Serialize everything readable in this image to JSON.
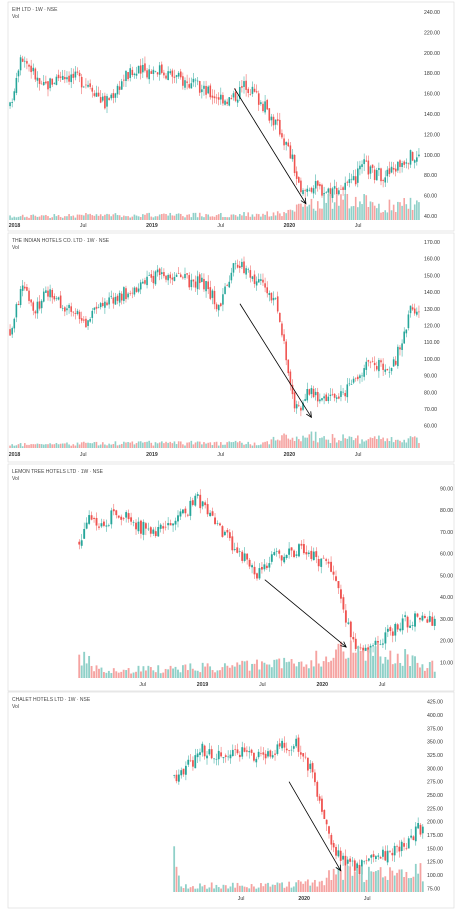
{
  "colors": {
    "up": "#26a69a",
    "down": "#ef5350",
    "up_vol": "#8fd0c8",
    "down_vol": "#f5a3a1",
    "arrow": "#000000"
  },
  "chart_data": [
    {
      "type": "candlestick",
      "title": "EIH LTD · 1W · NSE",
      "volume_label": "Vol",
      "y_ticks": [
        "40.00",
        "60.00",
        "80.00",
        "100.00",
        "120.00",
        "140.00",
        "160.00",
        "180.00",
        "200.00",
        "220.00",
        "240.00"
      ],
      "ylim": [
        40,
        240
      ],
      "x_ticks": [
        {
          "label": "2018",
          "t": 2018.0,
          "bold": true
        },
        {
          "label": "Jul",
          "t": 2018.5
        },
        {
          "label": "2019",
          "t": 2019.0,
          "bold": true
        },
        {
          "label": "Jul",
          "t": 2019.5
        },
        {
          "label": "2020",
          "t": 2020.0,
          "bold": true
        },
        {
          "label": "Jul",
          "t": 2020.5
        }
      ],
      "x_range": [
        2017.96,
        2020.95
      ],
      "weeks": 156,
      "series_knots": [
        [
          0,
          146
        ],
        [
          5,
          200
        ],
        [
          10,
          185
        ],
        [
          15,
          165
        ],
        [
          25,
          180
        ],
        [
          38,
          170
        ],
        [
          45,
          150
        ],
        [
          55,
          178
        ],
        [
          70,
          185
        ],
        [
          80,
          175
        ],
        [
          95,
          160
        ],
        [
          105,
          154
        ],
        [
          112,
          170
        ],
        [
          118,
          155
        ],
        [
          128,
          125
        ],
        [
          134,
          95
        ],
        [
          138,
          60
        ],
        [
          142,
          70
        ],
        [
          150,
          65
        ],
        [
          162,
          70
        ],
        [
          168,
          90
        ],
        [
          173,
          80
        ],
        [
          180,
          82
        ],
        [
          188,
          98
        ],
        [
          194,
          98
        ]
      ],
      "vol_knots": [
        [
          0,
          2
        ],
        [
          40,
          3
        ],
        [
          100,
          3
        ],
        [
          130,
          4
        ],
        [
          145,
          10
        ],
        [
          160,
          14
        ],
        [
          175,
          8
        ],
        [
          194,
          10
        ]
      ],
      "arrow": {
        "from": [
          "2019.60",
          "165"
        ],
        "to": [
          "2020.12",
          "52"
        ]
      }
    },
    {
      "type": "candlestick",
      "title": "THE INDIAN HOTELS CO. LTD · 1W · NSE",
      "volume_label": "Vol",
      "y_ticks": [
        "60.00",
        "70.00",
        "80.00",
        "90.00",
        "100.00",
        "110.00",
        "120.00",
        "130.00",
        "140.00",
        "150.00",
        "160.00",
        "170.00"
      ],
      "ylim": [
        55,
        170
      ],
      "x_ticks": [
        {
          "label": "2018",
          "t": 2018.0,
          "bold": true
        },
        {
          "label": "Jul",
          "t": 2018.5
        },
        {
          "label": "2019",
          "t": 2019.0,
          "bold": true
        },
        {
          "label": "Jul",
          "t": 2019.5
        },
        {
          "label": "2020",
          "t": 2020.0,
          "bold": true
        },
        {
          "label": "Jul",
          "t": 2020.5
        }
      ],
      "x_range": [
        2017.96,
        2020.95
      ],
      "weeks": 156,
      "series_knots": [
        [
          0,
          117
        ],
        [
          6,
          145
        ],
        [
          12,
          130
        ],
        [
          18,
          140
        ],
        [
          28,
          130
        ],
        [
          36,
          122
        ],
        [
          46,
          135
        ],
        [
          56,
          140
        ],
        [
          70,
          150
        ],
        [
          80,
          148
        ],
        [
          92,
          145
        ],
        [
          100,
          130
        ],
        [
          106,
          160
        ],
        [
          115,
          150
        ],
        [
          126,
          135
        ],
        [
          130,
          110
        ],
        [
          134,
          75
        ],
        [
          138,
          68
        ],
        [
          142,
          82
        ],
        [
          150,
          75
        ],
        [
          158,
          78
        ],
        [
          166,
          92
        ],
        [
          172,
          100
        ],
        [
          180,
          90
        ],
        [
          186,
          110
        ],
        [
          190,
          128
        ],
        [
          194,
          125
        ]
      ],
      "vol_knots": [
        [
          0,
          2
        ],
        [
          60,
          3
        ],
        [
          120,
          3
        ],
        [
          136,
          8
        ],
        [
          150,
          6
        ],
        [
          170,
          5
        ],
        [
          194,
          6
        ]
      ],
      "arrow": {
        "from": [
          "2019.64",
          "133"
        ],
        "to": [
          "2020.16",
          "65"
        ]
      }
    },
    {
      "type": "candlestick",
      "title": "LEMON TREE HOTELS LTD · 1W · NSE",
      "volume_label": "Vol",
      "y_ticks": [
        "10.00",
        "20.00",
        "30.00",
        "40.00",
        "50.00",
        "60.00",
        "70.00",
        "80.00",
        "90.00"
      ],
      "ylim": [
        6,
        92
      ],
      "x_ticks": [
        {
          "label": "Jul",
          "t": 2018.5
        },
        {
          "label": "2019",
          "t": 2019.0,
          "bold": true
        },
        {
          "label": "Jul",
          "t": 2019.5
        },
        {
          "label": "2020",
          "t": 2020.0,
          "bold": true
        },
        {
          "label": "Jul",
          "t": 2020.5
        }
      ],
      "x_range": [
        2017.96,
        2020.95
      ],
      "weeks": 156,
      "series_knots": [
        [
          0,
          65
        ],
        [
          4,
          80
        ],
        [
          8,
          70
        ],
        [
          15,
          80
        ],
        [
          25,
          72
        ],
        [
          35,
          70
        ],
        [
          42,
          78
        ],
        [
          48,
          85
        ],
        [
          55,
          75
        ],
        [
          65,
          60
        ],
        [
          72,
          50
        ],
        [
          78,
          58
        ],
        [
          90,
          62
        ],
        [
          100,
          55
        ],
        [
          104,
          48
        ],
        [
          108,
          30
        ],
        [
          112,
          18
        ],
        [
          116,
          17
        ],
        [
          124,
          22
        ],
        [
          130,
          28
        ],
        [
          136,
          30
        ],
        [
          144,
          28
        ]
      ],
      "vol_knots": [
        [
          0,
          6
        ],
        [
          10,
          2
        ],
        [
          60,
          3
        ],
        [
          90,
          4
        ],
        [
          110,
          8
        ],
        [
          130,
          6
        ],
        [
          144,
          3
        ]
      ],
      "arrow": {
        "from": [
          "2019.52",
          "48"
        ],
        "to": [
          "2020.20",
          "17"
        ]
      }
    },
    {
      "type": "candlestick",
      "title": "CHALET HOTELS LTD · 1W · NSE",
      "volume_label": "Vol",
      "y_ticks": [
        "75.00",
        "100.00",
        "125.00",
        "150.00",
        "175.00",
        "200.00",
        "225.00",
        "250.00",
        "275.00",
        "300.00",
        "325.00",
        "350.00",
        "375.00",
        "400.00",
        "425.00"
      ],
      "ylim": [
        70,
        430
      ],
      "x_ticks": [
        {
          "label": "Jul",
          "t": 2019.5
        },
        {
          "label": "2020",
          "t": 2020.0,
          "bold": true
        },
        {
          "label": "Jul",
          "t": 2020.5
        }
      ],
      "x_range": [
        2018.96,
        2020.95
      ],
      "weeks": 96,
      "series_knots": [
        [
          0,
          285
        ],
        [
          5,
          300
        ],
        [
          12,
          335
        ],
        [
          20,
          320
        ],
        [
          30,
          330
        ],
        [
          38,
          320
        ],
        [
          45,
          345
        ],
        [
          52,
          345
        ],
        [
          58,
          300
        ],
        [
          63,
          230
        ],
        [
          67,
          160
        ],
        [
          72,
          130
        ],
        [
          78,
          110
        ],
        [
          82,
          125
        ],
        [
          88,
          135
        ],
        [
          94,
          145
        ],
        [
          100,
          160
        ],
        [
          104,
          190
        ],
        [
          106,
          180
        ]
      ],
      "vol_knots": [
        [
          0,
          10
        ],
        [
          3,
          2
        ],
        [
          40,
          2
        ],
        [
          60,
          3
        ],
        [
          72,
          6
        ],
        [
          90,
          5
        ],
        [
          106,
          6
        ]
      ],
      "arrow": {
        "from": [
          "2019.88",
          "275"
        ],
        "to": [
          "2020.29",
          "108"
        ]
      }
    }
  ]
}
